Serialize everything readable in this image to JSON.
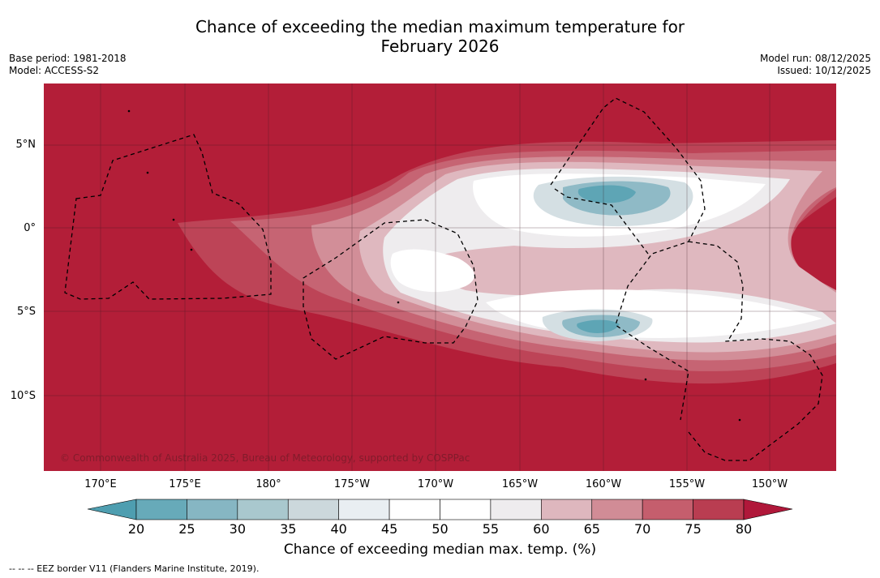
{
  "header": {
    "title_line1": "Chance of exceeding the median maximum temperature for",
    "title_line2": "February 2026",
    "base_period": "Base period: 1981-2018",
    "model": "Model: ACCESS-S2",
    "model_run": "Model run: 08/12/2025",
    "issued": "Issued: 10/12/2025"
  },
  "map": {
    "background_color": "#b31e38",
    "copyright": "© Commonwealth of Australia 2025, Bureau of Meteorology, supported by COSPPac",
    "lat_labels": [
      "5°N",
      "0°",
      "5°S",
      "10°S"
    ],
    "lon_labels": [
      "170°E",
      "175°E",
      "180°",
      "175°W",
      "170°W",
      "165°W",
      "160°W",
      "155°W",
      "150°W"
    ]
  },
  "colorbar": {
    "ticks": [
      "20",
      "25",
      "30",
      "35",
      "40",
      "45",
      "50",
      "55",
      "60",
      "65",
      "70",
      "75",
      "80"
    ],
    "colors": [
      "#67aab9",
      "#86b6c3",
      "#a9c8ce",
      "#ccd8dc",
      "#e9eef2",
      "#ffffff",
      "#ffffff",
      "#eeecee",
      "#deb7be",
      "#d18c96",
      "#c55e6d",
      "#b93d51"
    ],
    "low_extend_color": "#4e9eb0",
    "high_extend_color": "#b0183a",
    "title": "Chance of exceeding median max. temp. (%)"
  },
  "footnote": "--  --  -- EEZ border V11 (Flanders Marine Institute, 2019)."
}
